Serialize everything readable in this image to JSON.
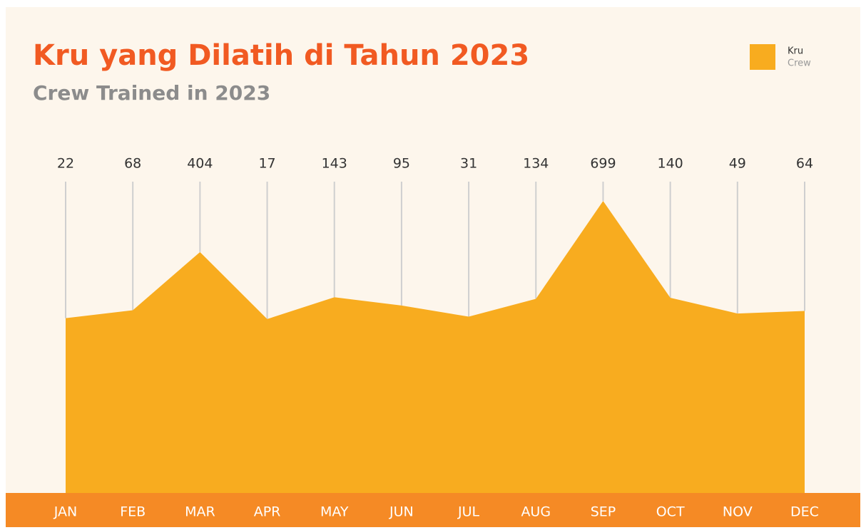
{
  "chart_data": {
    "type": "area",
    "title": "Kru yang Dilatih di Tahun 2023",
    "subtitle": "Crew Trained in 2023",
    "categories": [
      "JAN",
      "FEB",
      "MAR",
      "APR",
      "MAY",
      "JUN",
      "JUL",
      "AUG",
      "SEP",
      "OCT",
      "NOV",
      "DEC"
    ],
    "series": [
      {
        "name": "Kru",
        "name_en": "Crew",
        "color": "#f8ac1f",
        "values": [
          22,
          68,
          404,
          17,
          143,
          95,
          31,
          134,
          699,
          140,
          49,
          64
        ]
      }
    ],
    "ylim": [
      0,
      1000
    ],
    "legend": "top-right"
  }
}
